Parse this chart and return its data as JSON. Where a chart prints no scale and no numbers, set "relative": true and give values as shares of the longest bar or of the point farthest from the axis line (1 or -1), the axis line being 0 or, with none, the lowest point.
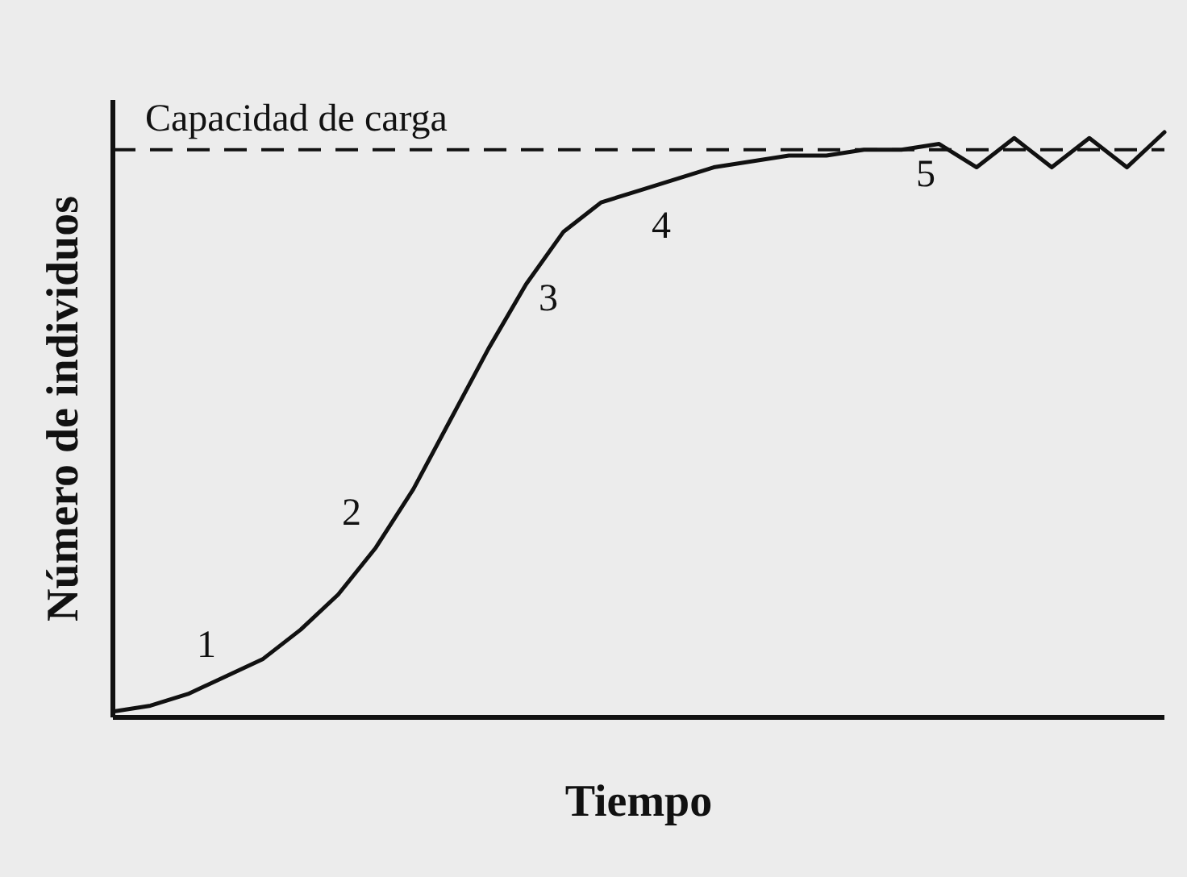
{
  "chart_data": {
    "type": "line",
    "relative": true,
    "xlabel": "Tiempo",
    "ylabel": "Número de individuos",
    "categories": [
      null,
      null,
      null,
      null,
      null,
      null,
      null,
      null,
      null,
      null,
      null,
      null,
      null,
      null,
      null,
      null,
      null,
      null,
      null,
      null,
      null,
      null,
      null,
      null,
      null,
      null,
      null,
      null,
      null
    ],
    "series": [
      {
        "color": "#111111",
        "values": [
          0.01,
          0.02,
          0.04,
          0.07,
          0.1,
          0.15,
          0.21,
          0.29,
          0.39,
          0.51,
          0.63,
          0.74,
          0.83,
          0.88,
          0.9,
          0.92,
          0.94,
          0.95,
          0.96,
          0.96,
          0.97,
          0.97,
          0.98,
          0.94,
          0.99,
          0.94,
          0.99,
          0.94,
          1
        ]
      },
      {
        "name": "Capacidad de carga",
        "color": "#111111",
        "line_style": "dashed",
        "values": [
          0.97,
          0.97,
          0.97,
          0.97,
          0.97,
          0.97,
          0.97,
          0.97,
          0.97,
          0.97,
          0.97,
          0.97,
          0.97,
          0.97,
          0.97,
          0.97,
          0.97,
          0.97,
          0.97,
          0.97,
          0.97,
          0.97,
          0.97,
          0.97,
          0.97,
          0.97,
          0.97,
          0.97,
          0.97
        ]
      }
    ],
    "annotations": [
      "1",
      "2",
      "3",
      "4",
      "5"
    ],
    "marker": "none",
    "line_style": "solid",
    "legend": false
  }
}
